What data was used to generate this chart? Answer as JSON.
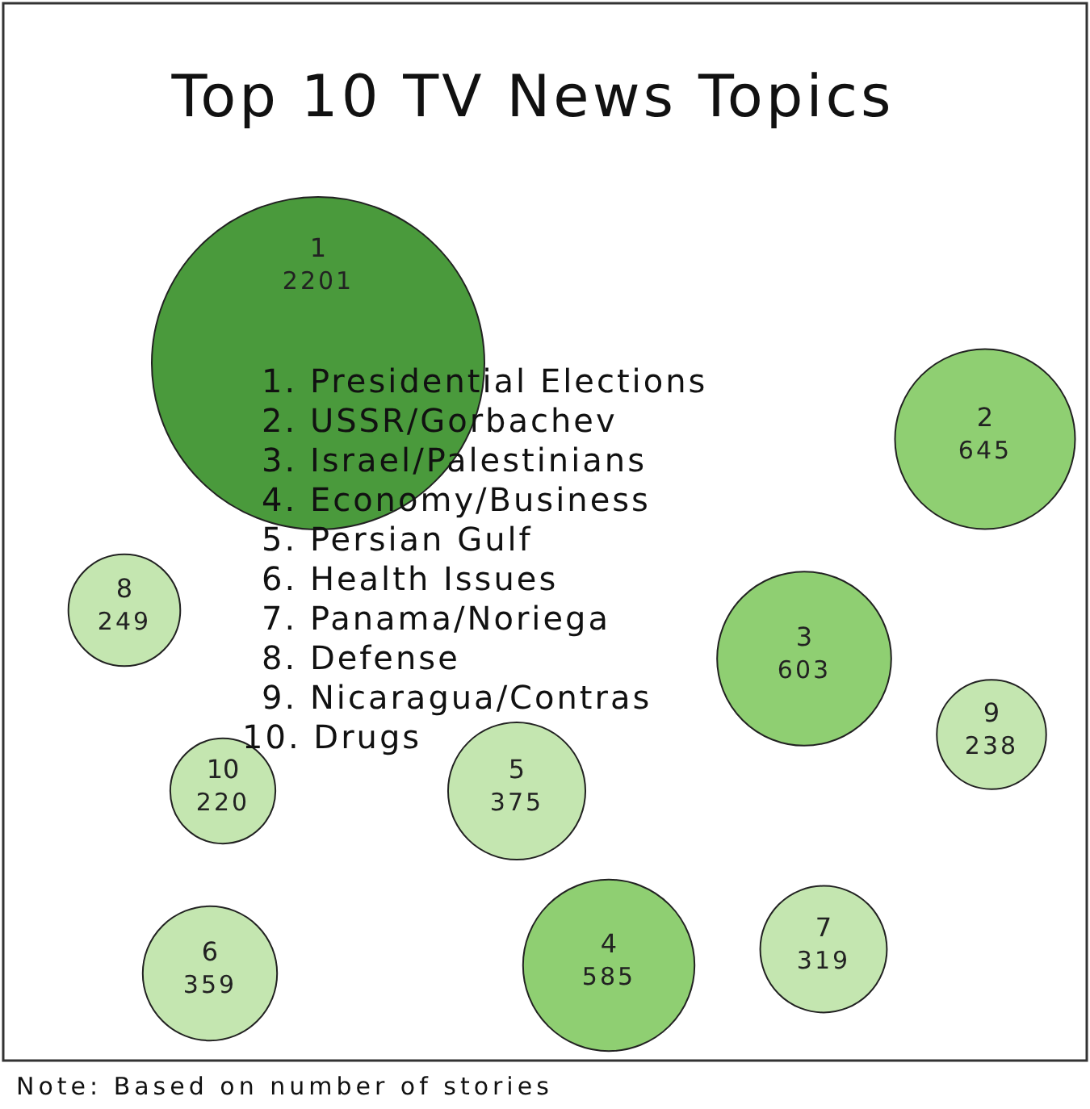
{
  "chart_data": {
    "type": "other",
    "title": "Top 10 TV News Topics",
    "categories": [
      "1",
      "2",
      "3",
      "4",
      "5",
      "6",
      "7",
      "8",
      "9",
      "10"
    ],
    "values": [
      2201,
      645,
      603,
      585,
      375,
      359,
      319,
      249,
      238,
      220
    ],
    "colors": [
      "#4a9a3c",
      "#8fcf72",
      "#8fcf72",
      "#8fcf72",
      "#c4e6b0",
      "#c4e6b0",
      "#c4e6b0",
      "#c4e6b0",
      "#c4e6b0",
      "#c4e6b0"
    ],
    "data_labels": true,
    "annotations": [
      "1. Presidential Elections",
      "2. USSR/Gorbachev",
      "3. Israel/Palestinians",
      "4. Economy/Business",
      "5. Persian Gulf",
      "6. Health Issues",
      "7. Panama/Noriega",
      "8. Defense",
      "9. Nicaragua/Contras",
      "10. Drugs",
      "Note: Based on number of stories"
    ]
  }
}
